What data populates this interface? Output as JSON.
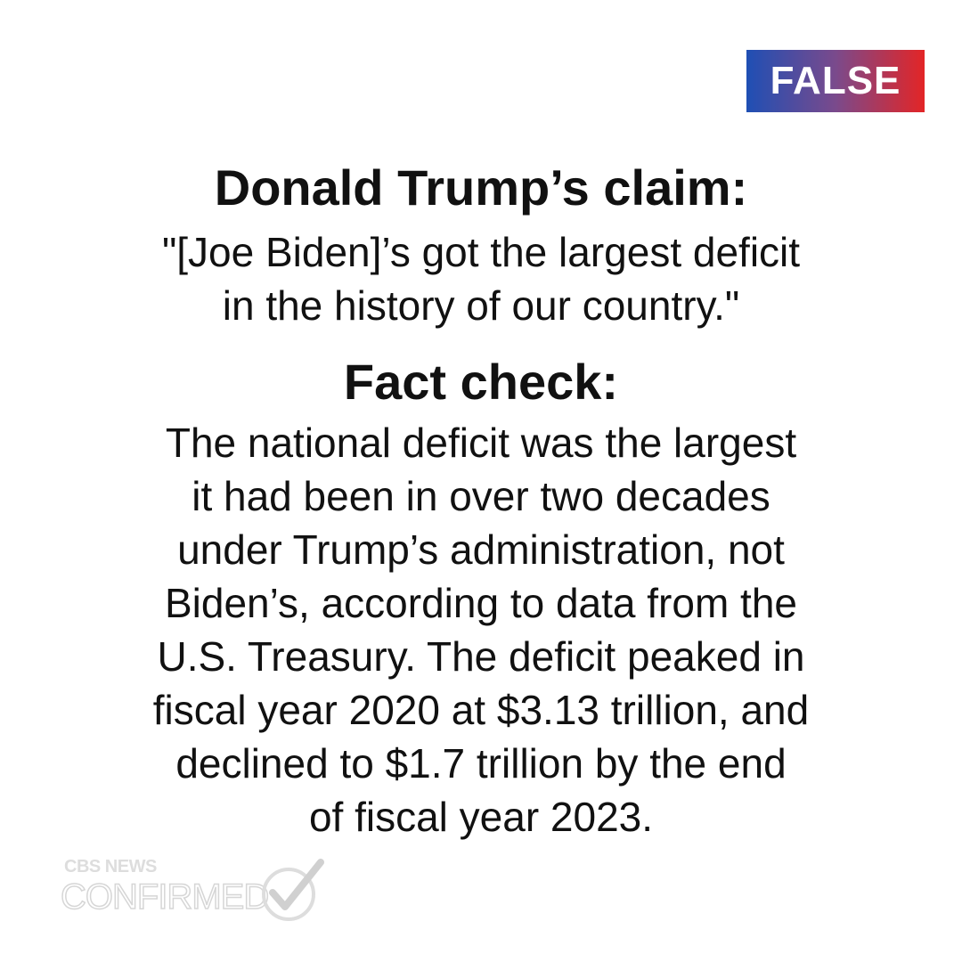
{
  "badge": "FALSE",
  "claim": {
    "heading": "Donald Trump’s claim:",
    "lines": [
      "\"[Joe Biden]’s got the largest deficit",
      "in the history of our country.\""
    ]
  },
  "fact_check": {
    "heading": "Fact check:",
    "lines": [
      "The national deficit was the largest",
      "it had been in over two decades",
      "under Trump’s administration, not",
      "Biden’s, according to data from the",
      "U.S. Treasury. The deficit peaked in",
      "fiscal year 2020 at $3.13 trillion, and",
      "declined to $1.7 trillion by the end",
      "of fiscal year 2023."
    ]
  },
  "logo": {
    "top": "CBS NEWS",
    "bottom": "CONFIRMED"
  }
}
